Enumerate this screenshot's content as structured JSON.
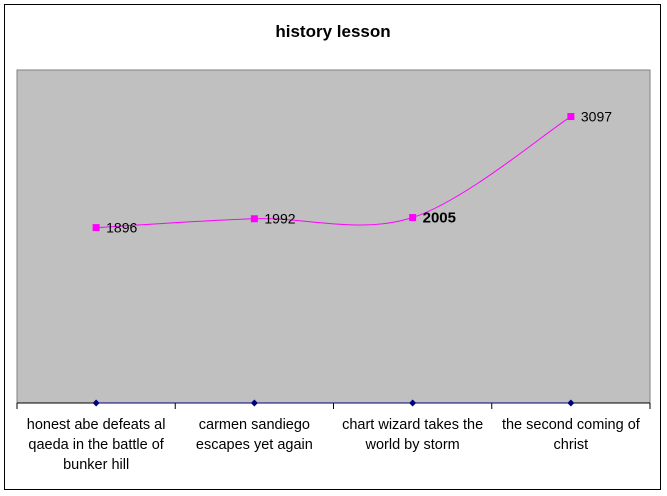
{
  "chart_data": {
    "type": "line",
    "title": "history lesson",
    "xlabel": "",
    "ylabel": "",
    "categories": [
      [
        "honest abe defeats al",
        "qaeda in the battle of",
        "bunker hill"
      ],
      [
        "carmen sandiego",
        "escapes yet again"
      ],
      [
        "chart wizard takes the",
        "world by storm"
      ],
      [
        "the second coming of",
        "christ"
      ]
    ],
    "series": [
      {
        "values": [
          1896,
          1992,
          2005,
          3097
        ],
        "labels": [
          "1896",
          "1992",
          "2005",
          "3097"
        ],
        "bold_label_index": 2,
        "color": "#ff00ff",
        "smoothed": true
      },
      {
        "values": [
          0,
          0,
          0,
          0
        ],
        "color": "#000080"
      }
    ],
    "ylim": [
      0,
      3600
    ],
    "plot_background": "#c0c0c0",
    "grid": false,
    "legend": "none"
  }
}
